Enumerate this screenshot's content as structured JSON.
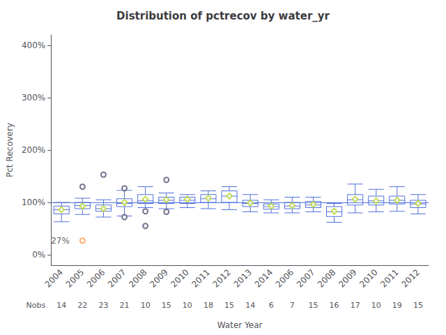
{
  "chart_data": {
    "type": "boxplot",
    "title": "Distribution of pctrecov by water_yr",
    "xlabel": "Water Year",
    "ylabel": "Pct Recovery",
    "nobs_label": "Nobs",
    "categories": [
      "2004",
      "2005",
      "2006",
      "2007",
      "2008",
      "2009",
      "2010",
      "2011",
      "2012",
      "2013",
      "2014",
      "2006",
      "2007",
      "2008",
      "2009",
      "2010",
      "2011",
      "2012"
    ],
    "nobs": [
      14,
      22,
      23,
      21,
      10,
      15,
      10,
      18,
      15,
      14,
      6,
      7,
      15,
      16,
      17,
      10,
      19,
      15
    ],
    "whislo": [
      63,
      77,
      72,
      74,
      90,
      88,
      90,
      88,
      86,
      82,
      80,
      80,
      82,
      62,
      80,
      82,
      83,
      78
    ],
    "q1": [
      78,
      88,
      83,
      92,
      98,
      98,
      98,
      100,
      100,
      92,
      87,
      88,
      90,
      73,
      95,
      95,
      97,
      90
    ],
    "median": [
      86,
      94,
      88,
      98,
      103,
      104,
      104,
      107,
      112,
      98,
      92,
      93,
      95,
      82,
      105,
      103,
      104,
      97
    ],
    "q3": [
      93,
      100,
      95,
      107,
      115,
      110,
      110,
      115,
      122,
      104,
      97,
      100,
      102,
      92,
      115,
      112,
      112,
      104
    ],
    "whishi": [
      100,
      108,
      105,
      123,
      130,
      118,
      115,
      122,
      130,
      115,
      105,
      110,
      110,
      98,
      135,
      125,
      130,
      115
    ],
    "mean": [
      86,
      93,
      88,
      100,
      106,
      105,
      106,
      108,
      112,
      99,
      93,
      94,
      96,
      83,
      106,
      103,
      104,
      98
    ],
    "fliers": [
      [],
      [
        130
      ],
      [
        153
      ],
      [
        127,
        72
      ],
      [
        83,
        55
      ],
      [
        82,
        143
      ],
      [],
      [],
      [],
      [],
      [],
      [],
      [],
      [],
      [],
      [],
      [],
      []
    ],
    "annotations": [
      {
        "index": 1,
        "value": 27,
        "label": "27%"
      }
    ],
    "reference_line": 100,
    "ylim": [
      -20,
      420
    ],
    "yticks": [
      {
        "value": 0,
        "label": "0%"
      },
      {
        "value": 100,
        "label": "100%"
      },
      {
        "value": 200,
        "label": "200%"
      },
      {
        "value": 300,
        "label": "300%"
      },
      {
        "value": 400,
        "label": "400%"
      }
    ],
    "grid": false
  }
}
